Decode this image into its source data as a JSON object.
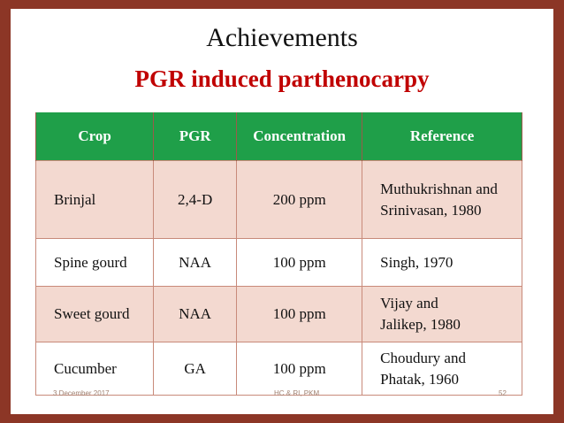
{
  "header": {
    "title": "Achievements",
    "subtitle": "PGR induced parthenocarpy"
  },
  "table": {
    "columns": [
      "Crop",
      "PGR",
      "Concentration",
      "Reference"
    ],
    "rows": [
      [
        "Brinjal",
        "2,4-D",
        "200 ppm",
        [
          "Muthukrishnan and",
          "Srinivasan,  1980"
        ]
      ],
      [
        "Spine gourd",
        "NAA",
        "100 ppm",
        [
          "Singh, 1970"
        ]
      ],
      [
        "Sweet gourd",
        "NAA",
        "100 ppm",
        [
          "Vijay and",
          "Jalikep, 1980"
        ]
      ],
      [
        "Cucumber",
        "GA",
        "100 ppm",
        [
          "Choudury and",
          "Phatak, 1960"
        ]
      ]
    ]
  },
  "footer": {
    "date": "3 December 2017",
    "center": "HC & RI, PKM",
    "page": "52"
  }
}
